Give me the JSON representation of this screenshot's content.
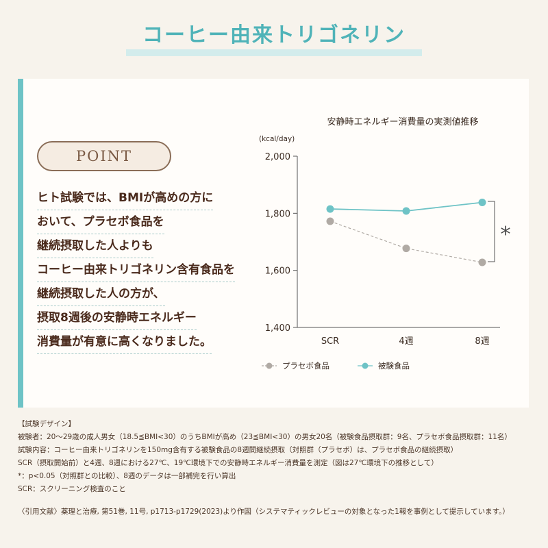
{
  "page": {
    "title": "コーヒー由来トリゴネリン"
  },
  "point": {
    "badge": "POINT",
    "lines": [
      "ヒト試験では、BMIが高めの方に",
      "おいて、プラセボ食品を",
      "継続摂取した人よりも",
      "コーヒー由来トリゴネリン含有食品を",
      "継続摂取した人の方が、",
      "摂取8週後の安静時エネルギー",
      "消費量が有意に高くなりました。"
    ]
  },
  "chart_data": {
    "type": "line",
    "title": "安静時エネルギー消費量の実測値推移",
    "ylabel": "(kcal/day)",
    "categories": [
      "SCR",
      "4週",
      "8週"
    ],
    "yticks": [
      "1,400",
      "1,600",
      "1,800",
      "2,000"
    ],
    "ylim": [
      1400,
      2000
    ],
    "series": [
      {
        "name": "被験食品",
        "values": [
          1815,
          1808,
          1838
        ],
        "color": "#6ec3c6",
        "style": "solid"
      },
      {
        "name": "プラセボ食品",
        "values": [
          1772,
          1677,
          1628
        ],
        "color": "#b0aaa4",
        "style": "dashed"
      }
    ],
    "significance": "*",
    "legend": "bottom-left",
    "grid": false
  },
  "notes": {
    "heading": "【試験デザイン】",
    "lines": [
      "被験者：20～29歳の成人男女（18.5≦BMI<30）のうちBMIが高め（23≦BMI<30）の男女20名（被験食品摂取群：9名、プラセボ食品摂取群：11名）",
      "試験内容：コーヒー由来トリゴネリンを150mg含有する被験食品の8週間継続摂取（対照群（プラセボ）は、プラセボ食品の継続摂取）",
      "SCR（摂取開始前）と4週、8週における27℃、19℃環境下での安静時エネルギー消費量を測定（図は27℃環境下の推移として）",
      "*：p<0.05（対照群との比較）、8週のデータは一部補完を行い算出",
      "SCR：スクリーニング検査のこと"
    ],
    "reference": "〈引用文献〉薬理と治療, 第51巻, 11号, p1713-p1729(2023)より作図（システマティックレビューの対象となった1報を事例として提示しています。）"
  }
}
